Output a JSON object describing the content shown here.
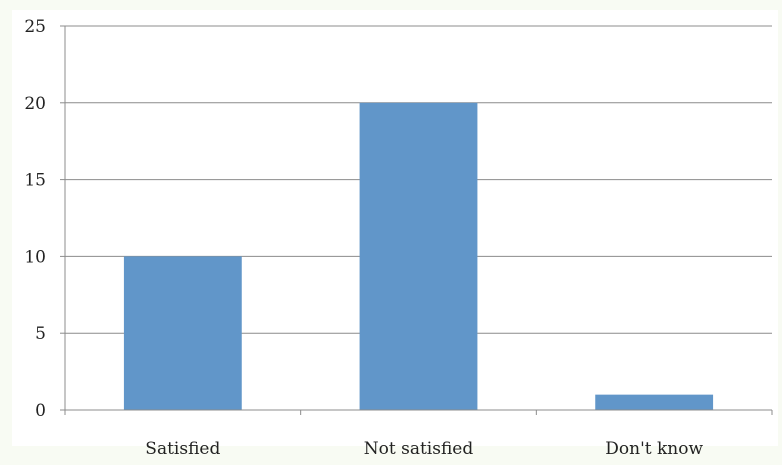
{
  "chart_data": {
    "type": "bar",
    "title": "",
    "xlabel": "",
    "ylabel": "",
    "categories": [
      "Satisfied",
      "Not satisfied",
      "Don't know"
    ],
    "values": [
      10,
      20,
      1
    ],
    "ylim": [
      0,
      25
    ],
    "yticks": [
      0,
      5,
      10,
      15,
      20,
      25
    ],
    "grid": true,
    "legend": "none",
    "colors": {
      "bar": "#6196c9",
      "plot_background": "#ffffff",
      "page_background": "#f8fbf3",
      "gridline": "#8c8c8c",
      "axis": "#8c8c8c"
    }
  }
}
